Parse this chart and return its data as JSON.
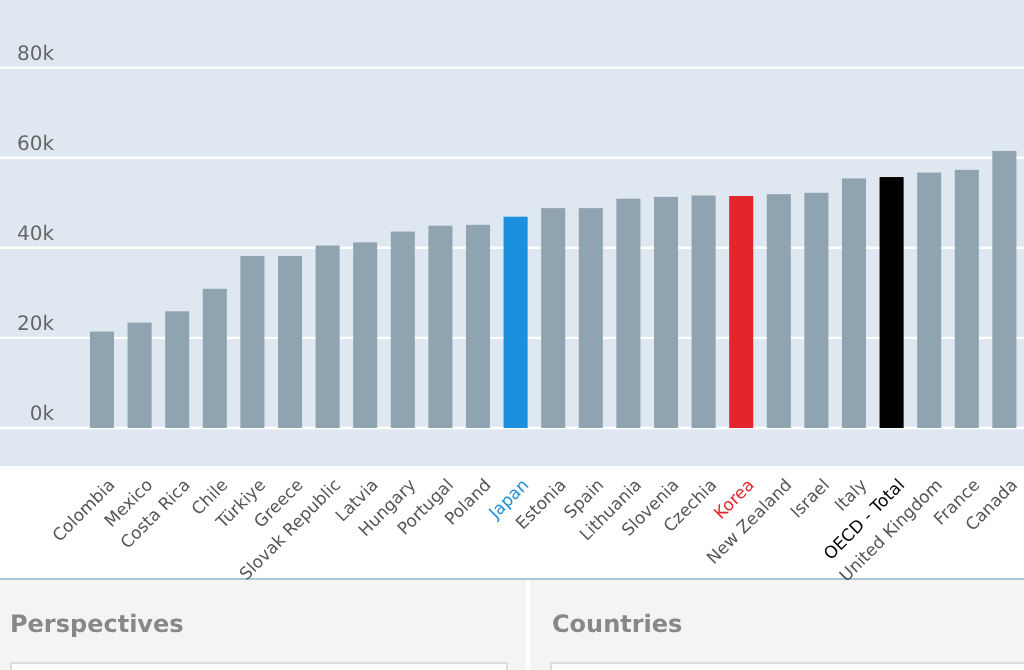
{
  "chart_data": {
    "type": "bar",
    "categories": [
      "Colombia",
      "Mexico",
      "Costa Rica",
      "Chile",
      "Türkiye",
      "Greece",
      "Slovak Republic",
      "Latvia",
      "Hungary",
      "Portugal",
      "Poland",
      "Japan",
      "Estonia",
      "Spain",
      "Lithuania",
      "Slovenia",
      "Czechia",
      "Korea",
      "New Zealand",
      "Israel",
      "Italy",
      "OECD - Total",
      "United Kingdom",
      "France",
      "Canada"
    ],
    "values": [
      21400,
      23400,
      25900,
      30900,
      38200,
      38200,
      40500,
      41200,
      43600,
      44900,
      45100,
      46900,
      48800,
      48800,
      50900,
      51300,
      51600,
      51500,
      51900,
      52200,
      55400,
      55700,
      56700,
      57300,
      61500
    ],
    "colors": [
      "#8fa4b0",
      "#8fa4b0",
      "#8fa4b0",
      "#8fa4b0",
      "#8fa4b0",
      "#8fa4b0",
      "#8fa4b0",
      "#8fa4b0",
      "#8fa4b0",
      "#8fa4b0",
      "#8fa4b0",
      "#1a8fdc",
      "#8fa4b0",
      "#8fa4b0",
      "#8fa4b0",
      "#8fa4b0",
      "#8fa4b0",
      "#e3262c",
      "#8fa4b0",
      "#8fa4b0",
      "#8fa4b0",
      "#000000",
      "#8fa4b0",
      "#8fa4b0",
      "#8fa4b0"
    ],
    "ylim": [
      0,
      95000
    ],
    "yticks": [
      {
        "value": 0,
        "label": "0k"
      },
      {
        "value": 20000,
        "label": "20k"
      },
      {
        "value": 40000,
        "label": "40k"
      },
      {
        "value": 60000,
        "label": "60k"
      },
      {
        "value": 80000,
        "label": "80k"
      }
    ],
    "grid": "y",
    "annotations": [
      "Perspectives",
      "Countries"
    ]
  }
}
